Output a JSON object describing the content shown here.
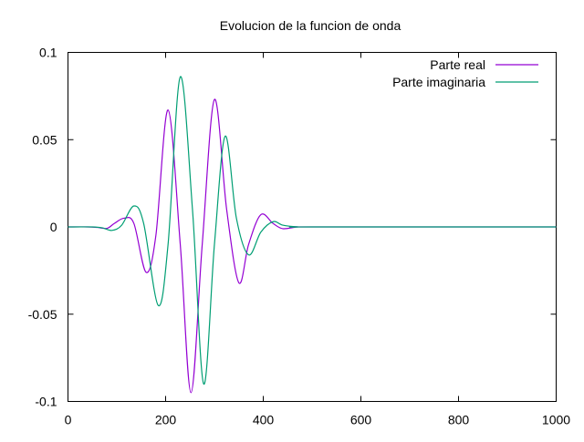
{
  "chart_data": {
    "type": "line",
    "title": "Evolucion de la funcion de onda",
    "xlabel": "",
    "ylabel": "",
    "xlim": [
      0,
      1000
    ],
    "ylim": [
      -0.1,
      0.1
    ],
    "x_ticks": [
      "0",
      "200",
      "400",
      "600",
      "800",
      "1000"
    ],
    "x_tick_values": [
      0,
      200,
      400,
      600,
      800,
      1000
    ],
    "y_ticks": [
      "0.1",
      "0.05",
      "0",
      "-0.05",
      "-0.1"
    ],
    "y_tick_values": [
      0.1,
      0.05,
      0,
      -0.05,
      -0.1
    ],
    "grid": false,
    "legend_position": "top-right",
    "series": [
      {
        "name": "Parte real",
        "color": "#9400D3",
        "x": [
          0,
          40,
          60,
          80,
          95,
          115,
          135,
          160,
          180,
          205,
          230,
          252,
          275,
          300,
          325,
          350,
          370,
          395,
          420,
          440,
          470,
          500,
          1000
        ],
        "y": [
          0,
          0,
          -0.0003,
          -0.0008,
          0.002,
          0.005,
          0.002,
          -0.026,
          -0.005,
          0.067,
          -0.01,
          -0.095,
          -0.01,
          0.073,
          0.01,
          -0.032,
          -0.01,
          0.007,
          0.002,
          -0.001,
          0,
          0,
          0
        ]
      },
      {
        "name": "Parte imaginaria",
        "color": "#009E73",
        "x": [
          0,
          50,
          70,
          90,
          110,
          135,
          155,
          185,
          205,
          230,
          255,
          278,
          300,
          322,
          345,
          370,
          395,
          420,
          440,
          470,
          500,
          1000
        ],
        "y": [
          0,
          0,
          -0.0005,
          -0.002,
          0.001,
          0.012,
          0.002,
          -0.045,
          -0.01,
          0.086,
          0.01,
          -0.09,
          -0.01,
          0.052,
          0.005,
          -0.016,
          -0.003,
          0.003,
          0.001,
          0,
          0,
          0
        ]
      }
    ]
  }
}
